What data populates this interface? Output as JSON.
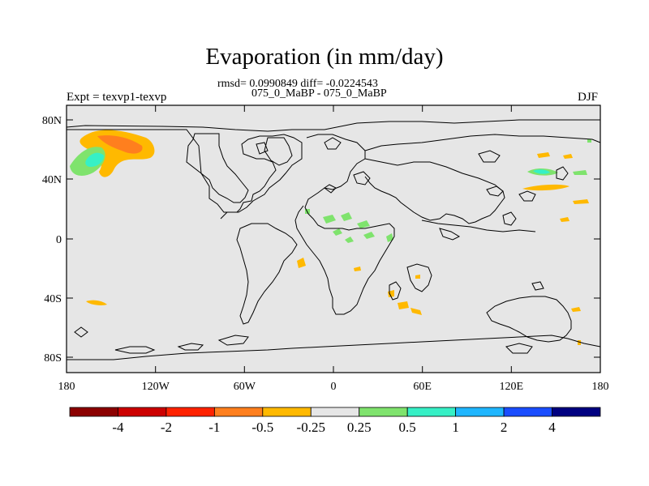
{
  "figure": {
    "title": "Evaporation (in mm/day)",
    "stats_line": "rmsd= 0.0990849 diff= -0.0224543",
    "case_line": "075_0_MaBP - 075_0_MaBP",
    "experiment_label": "Expt = texvp1-texvp",
    "season_label": "DJF"
  },
  "axes": {
    "lat_ticks": [
      "80N",
      "40N",
      "0",
      "40S",
      "80S"
    ],
    "lon_ticks": [
      "180",
      "120W",
      "60W",
      "0",
      "60E",
      "120E",
      "180"
    ]
  },
  "colorbar": {
    "labels": [
      "-4",
      "-2",
      "-1",
      "-0.5",
      "-0.25",
      "0.25",
      "0.5",
      "1",
      "2",
      "4"
    ],
    "colors": [
      "#8b0000",
      "#cc0000",
      "#ff2200",
      "#ff7f1e",
      "#ffb900",
      "#e6e6e6",
      "#7fe36d",
      "#36f0c6",
      "#1fb6ff",
      "#1a4dff",
      "#000080"
    ]
  },
  "colors": {
    "land_fill": "#e6e6e6",
    "coastline": "#000000"
  }
}
